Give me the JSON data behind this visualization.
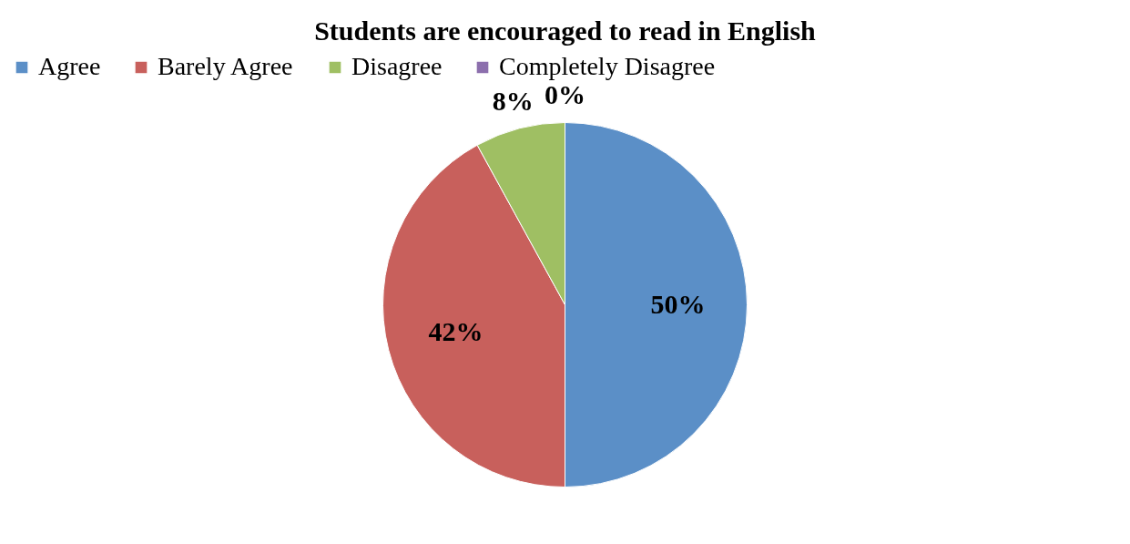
{
  "chart_data": {
    "type": "pie",
    "title": "Students are encouraged to read in English",
    "categories": [
      "Agree",
      "Barely Agree",
      "Disagree",
      "Completely Disagree"
    ],
    "values": [
      50,
      42,
      8,
      0
    ],
    "colors": [
      "#5b8fc7",
      "#c8605c",
      "#9fbf63",
      "#8c6fad"
    ],
    "value_labels": [
      "50%",
      "42%",
      "8%",
      "0%"
    ],
    "legend": "top"
  }
}
